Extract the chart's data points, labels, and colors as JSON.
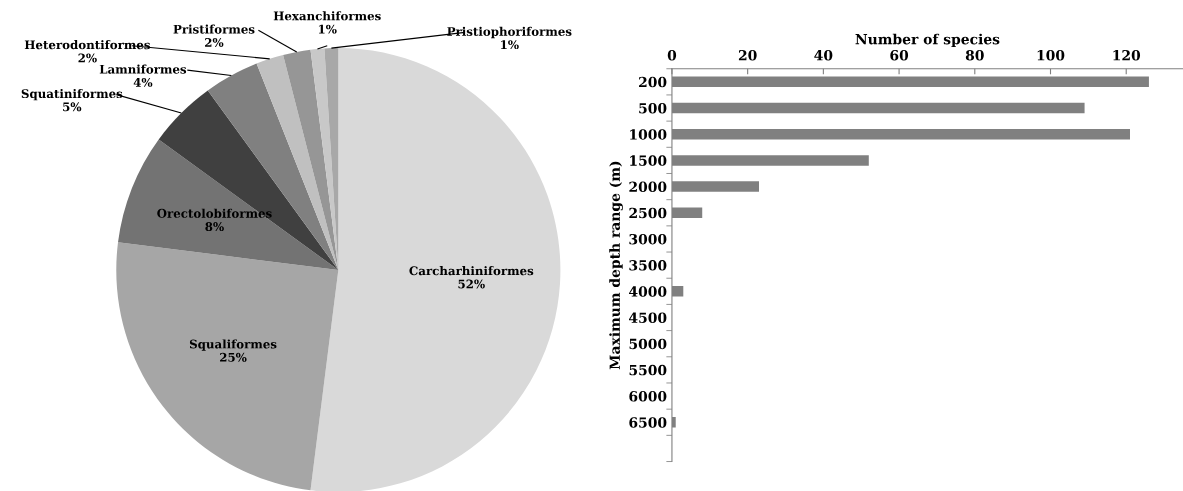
{
  "chart_data": [
    {
      "type": "pie",
      "categories": [
        "Carcharhiniformes",
        "Squaliformes",
        "Orectolobiformes",
        "Squatiniformes",
        "Lamniformes",
        "Heterodontiformes",
        "Pristiformes",
        "Hexanchiformes",
        "Pristiophoriformes"
      ],
      "values": [
        52,
        25,
        8,
        5,
        4,
        2,
        2,
        1,
        1
      ],
      "value_labels": [
        "52%",
        "25%",
        "8%",
        "5%",
        "4%",
        "2%",
        "2%",
        "1%",
        "1%"
      ],
      "colors": [
        "#d9d9d9",
        "#a6a6a6",
        "#737373",
        "#404040",
        "#808080",
        "#c0c0c0",
        "#969696",
        "#c8c8c8",
        "#a8a8a8"
      ]
    },
    {
      "type": "bar",
      "orientation": "horizontal",
      "xlabel": "Number of species",
      "ylabel": "Maximum depth range (m)",
      "categories": [
        "200",
        "500",
        "1000",
        "1500",
        "2000",
        "2500",
        "3000",
        "3500",
        "4000",
        "4500",
        "5000",
        "5500",
        "6000",
        "6500",
        null
      ],
      "values": [
        126,
        109,
        121,
        52,
        23,
        8,
        0,
        0,
        3,
        0,
        0,
        0,
        0,
        1,
        null
      ],
      "color": "#808080",
      "xlim": [
        0,
        135
      ],
      "xticks": [
        0,
        20,
        40,
        60,
        80,
        100,
        120
      ],
      "grid": false,
      "legend": false
    }
  ]
}
